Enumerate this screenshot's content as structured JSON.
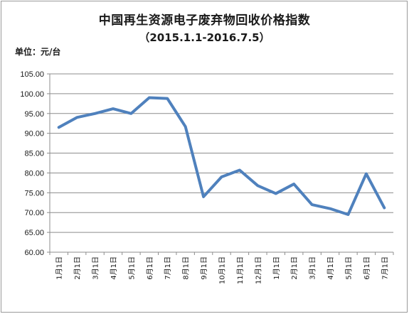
{
  "chart_data": {
    "type": "line",
    "title": "中国再生资源电子废弃物回收价格指数",
    "subtitle": "（2015.1.1-2016.7.5）",
    "ylabel": "单位：元/台",
    "ylim": [
      60,
      105
    ],
    "yticks": [
      "60.00",
      "65.00",
      "70.00",
      "75.00",
      "80.00",
      "85.00",
      "90.00",
      "95.00",
      "100.00",
      "105.00"
    ],
    "categories": [
      "1月1日",
      "2月1日",
      "3月1日",
      "4月1日",
      "5月1日",
      "6月1日",
      "7月1日",
      "8月1日",
      "9月1日",
      "10月1日",
      "11月1日",
      "12月1日",
      "1月1日",
      "2月1日",
      "3月1日",
      "4月1日",
      "5月1日",
      "6月1日",
      "7月1日"
    ],
    "series": [
      {
        "values": [
          91.5,
          94.0,
          95.0,
          96.2,
          95.0,
          99.0,
          98.8,
          91.7,
          74.0,
          79.0,
          80.7,
          76.8,
          74.8,
          77.2,
          72.0,
          71.0,
          69.5,
          79.8,
          71.2
        ],
        "color": "#4f81bd"
      }
    ],
    "grid": true,
    "legend": "none"
  }
}
